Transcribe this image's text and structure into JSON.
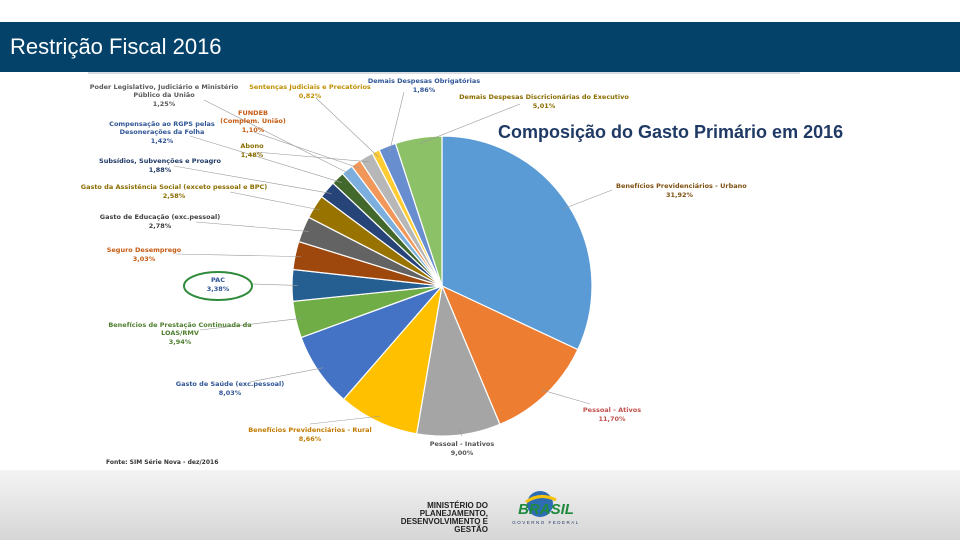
{
  "header": {
    "title": "Restrição Fiscal 2016"
  },
  "source": "Fonte: SIM Série Nova - dez/2016",
  "footer": {
    "ministry_lines": [
      "MINISTÉRIO DO",
      "PLANEJAMENTO,",
      "DESENVOLVIMENTO E GESTÃO"
    ],
    "logo_text": "BRASIL",
    "logo_subtext": "GOVERNO FEDERAL"
  },
  "chart_data": {
    "type": "pie",
    "title": "Composição do Gasto Primário em 2016",
    "slices": [
      {
        "label": "Benefícios Previdenciários - Urbano",
        "value": 31.92,
        "pct": "31,92%",
        "color": "#5b9bd5",
        "label_color": "#7f4f10"
      },
      {
        "label": "Pessoal - Ativos",
        "value": 11.7,
        "pct": "11,70%",
        "color": "#ed7d31",
        "label_color": "#c0504d"
      },
      {
        "label": "Pessoal - Inativos",
        "value": 9.0,
        "pct": "9,00%",
        "color": "#a5a5a5",
        "label_color": "#555555"
      },
      {
        "label": "Benefícios Previdenciários - Rural",
        "value": 8.66,
        "pct": "8,66%",
        "color": "#ffc000",
        "label_color": "#c07a00"
      },
      {
        "label": "Gasto de Saúde (exc.pessoal)",
        "value": 8.03,
        "pct": "8,03%",
        "color": "#4472c4",
        "label_color": "#2f5597"
      },
      {
        "label": "Benefícios de Prestação Continuada da LOAS/RMV",
        "value": 3.94,
        "pct": "3,94%",
        "color": "#70ad47",
        "label_color": "#4f7f2f"
      },
      {
        "label": "PAC",
        "value": 3.38,
        "pct": "3,38%",
        "color": "#255e91",
        "label_color": "#2f5597"
      },
      {
        "label": "Seguro Desemprego",
        "value": 3.03,
        "pct": "3,03%",
        "color": "#9e480e",
        "label_color": "#c55a11"
      },
      {
        "label": "Gasto de Educação (exc.pessoal)",
        "value": 2.78,
        "pct": "2,78%",
        "color": "#636363",
        "label_color": "#404040"
      },
      {
        "label": "Gasto da Assistência Social (exceto pessoal e BPC)",
        "value": 2.58,
        "pct": "2,58%",
        "color": "#997300",
        "label_color": "#8a6d00"
      },
      {
        "label": "Subsídios, Subvenções e Proagro",
        "value": 1.88,
        "pct": "1,88%",
        "color": "#264478",
        "label_color": "#1f3864"
      },
      {
        "label": "Compensação ao RGPS pelas Desonerações da Folha",
        "value": 1.42,
        "pct": "1,42%",
        "color": "#43682b",
        "label_color": "#2f5597"
      },
      {
        "label": "Poder Legislativo, Judiciário e Ministério Público da União",
        "value": 1.25,
        "pct": "1,25%",
        "color": "#7cafdd",
        "label_color": "#595959"
      },
      {
        "label": "FUNDEB (Complem. União)",
        "value": 1.1,
        "pct": "1,10%",
        "color": "#f1975a",
        "label_color": "#c55a11"
      },
      {
        "label": "Abono",
        "value": 1.48,
        "pct": "1,48%",
        "color": "#b7b7b7",
        "label_color": "#8a6d00"
      },
      {
        "label": "Sentenças Judiciais e Precatórios",
        "value": 0.82,
        "pct": "0,82%",
        "color": "#ffcd33",
        "label_color": "#bf8f00"
      },
      {
        "label": "Demais Despesas Obrigatórias",
        "value": 1.86,
        "pct": "1,86%",
        "color": "#698ed0",
        "label_color": "#2f5597"
      },
      {
        "label": "Demais Despesas Discricionárias do Executivo",
        "value": 5.01,
        "pct": "5,01%",
        "color": "#8cc168",
        "label_color": "#8a6d00"
      }
    ],
    "highlighted": "PAC"
  }
}
